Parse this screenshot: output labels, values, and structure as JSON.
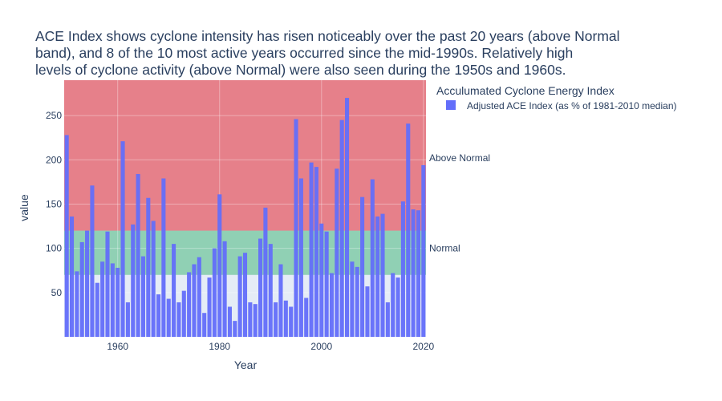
{
  "chart_data": {
    "type": "bar",
    "title_lines": [
      "ACE Index shows cyclone intensity has risen noticeably over the past 20 years (above Normal",
      "band), and 8 of the 10 most active years occurred since the mid-1990s. Relatively high",
      "levels of cyclone activity (above Normal) were also seen during the 1950s and 1960s."
    ],
    "xlabel": "Year",
    "ylabel": "value",
    "xlim": [
      1949.5,
      2020.5
    ],
    "ylim": [
      0,
      290
    ],
    "x_ticks": [
      1960,
      1980,
      2000,
      2020
    ],
    "y_ticks": [
      50,
      100,
      150,
      200,
      250
    ],
    "grid": true,
    "legend": {
      "title": "Acculumated Cyclone Energy Index",
      "position": "top-right",
      "entries": [
        "Adjusted ACE Index (as % of 1981-2010 median)"
      ]
    },
    "bands": [
      {
        "label": "Normal",
        "from": 70,
        "to": 120,
        "color": "#3cb371",
        "opacity": 0.5
      },
      {
        "label": "Above Normal",
        "from": 120,
        "to": 290,
        "color": "#e8141d",
        "opacity": 0.5
      }
    ],
    "series": [
      {
        "name": "Adjusted ACE Index (as % of 1981-2010 median)",
        "color": "#636efa",
        "x": [
          1950,
          1951,
          1952,
          1953,
          1954,
          1955,
          1956,
          1957,
          1958,
          1959,
          1960,
          1961,
          1962,
          1963,
          1964,
          1965,
          1966,
          1967,
          1968,
          1969,
          1970,
          1971,
          1972,
          1973,
          1974,
          1975,
          1976,
          1977,
          1978,
          1979,
          1980,
          1981,
          1982,
          1983,
          1984,
          1985,
          1986,
          1987,
          1988,
          1989,
          1990,
          1991,
          1992,
          1993,
          1994,
          1995,
          1996,
          1997,
          1998,
          1999,
          2000,
          2001,
          2002,
          2003,
          2004,
          2005,
          2006,
          2007,
          2008,
          2009,
          2010,
          2011,
          2012,
          2013,
          2014,
          2015,
          2016,
          2017,
          2018,
          2019,
          2020
        ],
        "values": [
          228,
          136,
          74,
          107,
          120,
          171,
          61,
          85,
          119,
          83,
          78,
          221,
          39,
          127,
          184,
          91,
          157,
          131,
          48,
          179,
          43,
          105,
          39,
          52,
          73,
          82,
          90,
          27,
          67,
          100,
          161,
          108,
          34,
          18,
          91,
          95,
          39,
          37,
          111,
          146,
          105,
          39,
          82,
          41,
          34,
          246,
          179,
          44,
          197,
          192,
          128,
          119,
          72,
          190,
          245,
          270,
          85,
          79,
          158,
          57,
          178,
          136,
          139,
          39,
          72,
          67,
          153,
          241,
          144,
          143,
          194
        ]
      }
    ]
  }
}
